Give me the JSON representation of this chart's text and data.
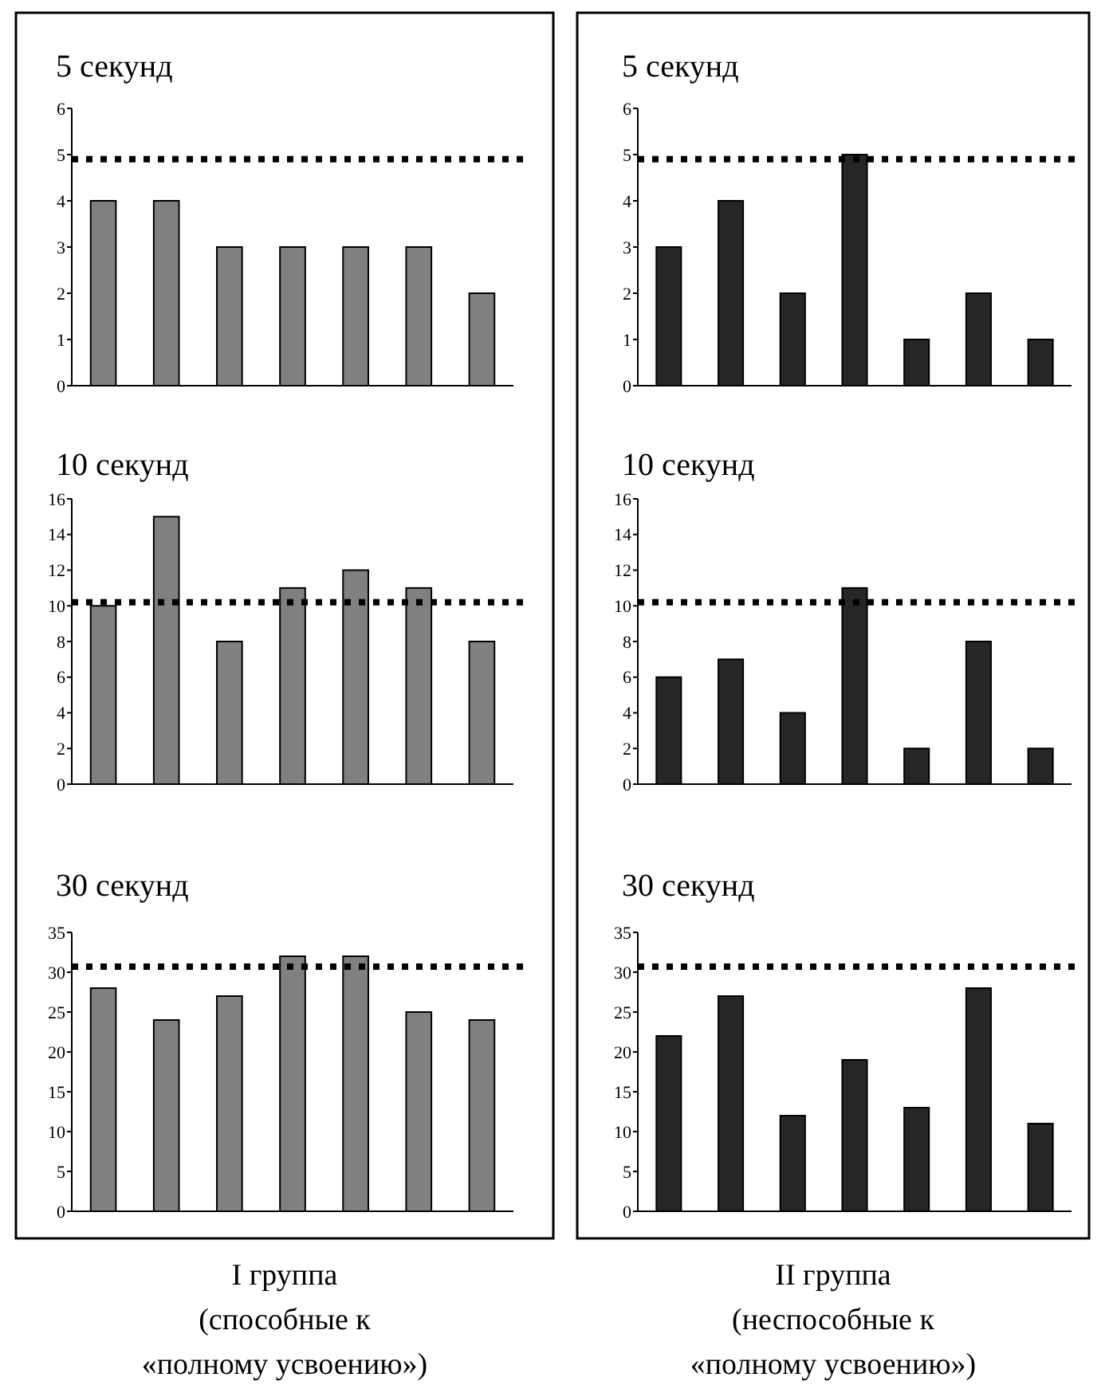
{
  "chart_data": [
    {
      "type": "bar",
      "title": "5 секунд",
      "categories": [
        null,
        null,
        null,
        null,
        null,
        null,
        null
      ],
      "values": [
        4,
        4,
        3,
        3,
        3,
        3,
        2
      ],
      "color": "#808080",
      "ylim": [
        0,
        6
      ],
      "yticks": [
        0,
        1,
        2,
        3,
        4,
        5,
        6
      ],
      "ref_lines": [
        {
          "axis": "y",
          "value": 4.9,
          "color": "#000000",
          "line_style": "dotted"
        }
      ]
    },
    {
      "type": "bar",
      "title": "5 секунд",
      "categories": [
        null,
        null,
        null,
        null,
        null,
        null,
        null
      ],
      "values": [
        3,
        4,
        2,
        5,
        1,
        2,
        1
      ],
      "color": "#262626",
      "ylim": [
        0,
        6
      ],
      "yticks": [
        0,
        1,
        2,
        3,
        4,
        5,
        6
      ],
      "ref_lines": [
        {
          "axis": "y",
          "value": 4.9,
          "color": "#000000",
          "line_style": "dotted"
        }
      ]
    },
    {
      "type": "bar",
      "title": "10 секунд",
      "categories": [
        null,
        null,
        null,
        null,
        null,
        null,
        null
      ],
      "values": [
        10,
        15,
        8,
        11,
        12,
        11,
        8
      ],
      "color": "#808080",
      "ylim": [
        0,
        16
      ],
      "yticks": [
        0,
        2,
        4,
        6,
        8,
        10,
        12,
        14,
        16
      ],
      "ref_lines": [
        {
          "axis": "y",
          "value": 10.2,
          "color": "#000000",
          "line_style": "dotted"
        }
      ]
    },
    {
      "type": "bar",
      "title": "10 секунд",
      "categories": [
        null,
        null,
        null,
        null,
        null,
        null,
        null
      ],
      "values": [
        6,
        7,
        4,
        11,
        2,
        8,
        2
      ],
      "color": "#262626",
      "ylim": [
        0,
        16
      ],
      "yticks": [
        0,
        2,
        4,
        6,
        8,
        10,
        12,
        14,
        16
      ],
      "ref_lines": [
        {
          "axis": "y",
          "value": 10.2,
          "color": "#000000",
          "line_style": "dotted"
        }
      ]
    },
    {
      "type": "bar",
      "title": "30 секунд",
      "xlabel": "I группа\n(способные к\n«полному усвоению»)",
      "categories": [
        null,
        null,
        null,
        null,
        null,
        null,
        null
      ],
      "values": [
        28,
        24,
        27,
        32,
        32,
        25,
        24
      ],
      "color": "#808080",
      "ylim": [
        0,
        35
      ],
      "yticks": [
        0,
        5,
        10,
        15,
        20,
        25,
        30,
        35
      ],
      "ref_lines": [
        {
          "axis": "y",
          "value": 30.7,
          "color": "#000000",
          "line_style": "dotted"
        }
      ]
    },
    {
      "type": "bar",
      "title": "30 секунд",
      "xlabel": "II группа\n(неспособные к\n«полному усвоению»)",
      "categories": [
        null,
        null,
        null,
        null,
        null,
        null,
        null
      ],
      "values": [
        22,
        27,
        12,
        19,
        13,
        28,
        11
      ],
      "color": "#262626",
      "ylim": [
        0,
        35
      ],
      "yticks": [
        0,
        5,
        10,
        15,
        20,
        25,
        30,
        35
      ],
      "ref_lines": [
        {
          "axis": "y",
          "value": 30.7,
          "color": "#000000",
          "line_style": "dotted"
        }
      ]
    }
  ]
}
